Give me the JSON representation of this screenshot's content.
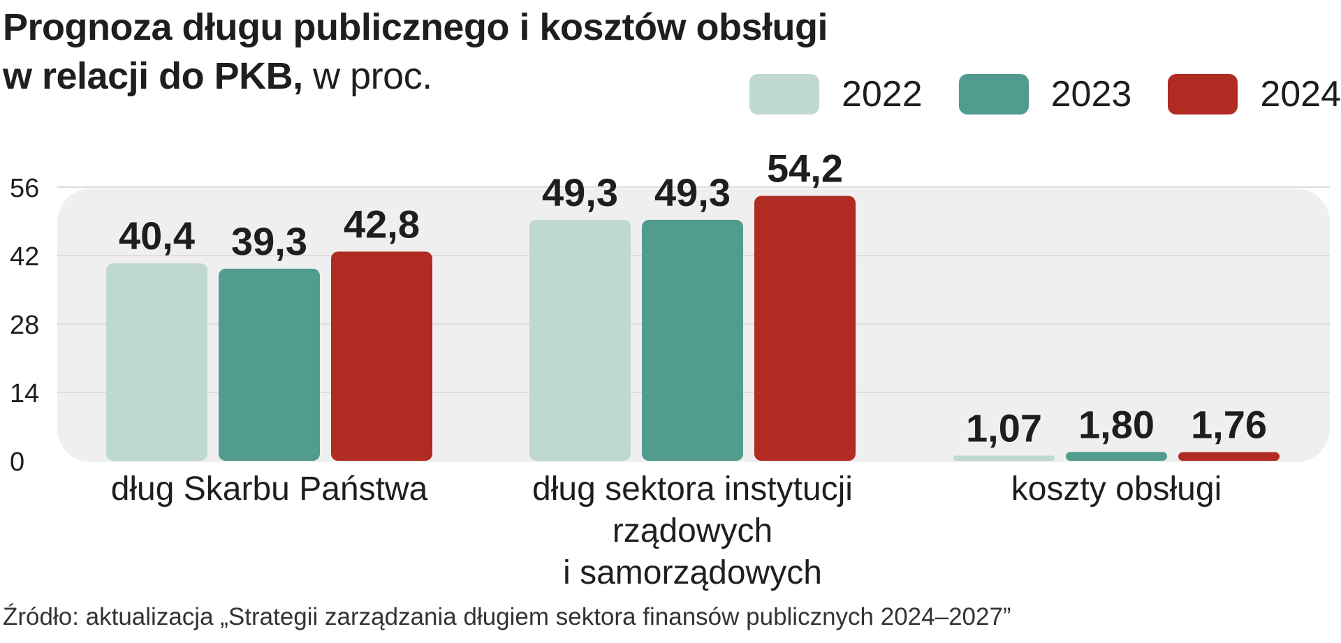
{
  "chart_data": {
    "type": "bar",
    "title": "Prognoza długu publicznego i kosztów obsługi w relacji do PKB,",
    "title_line1": "Prognoza długu publicznego i kosztów obsługi",
    "title_line2": "w relacji do PKB,",
    "unit": "w proc.",
    "categories": [
      [
        "dług Skarbu Państwa"
      ],
      [
        "dług sektora instytucji",
        "rządowych",
        "i samorządowych"
      ],
      [
        "koszty obsługi"
      ]
    ],
    "series": [
      {
        "name": "2022",
        "color": "#bfd9d2",
        "values": [
          40.4,
          49.3,
          1.07
        ],
        "labels": [
          "40,4",
          "49,3",
          "1,07"
        ]
      },
      {
        "name": "2023",
        "color": "#519b8f",
        "values": [
          39.3,
          49.3,
          1.8
        ],
        "labels": [
          "39,3",
          "49,3",
          "1,80"
        ]
      },
      {
        "name": "2024",
        "color": "#b02b22",
        "values": [
          42.8,
          54.2,
          1.76
        ],
        "labels": [
          "42,8",
          "54,2",
          "1,76"
        ]
      }
    ],
    "yticks": [
      "0",
      "14",
      "28",
      "42",
      "56"
    ],
    "ylim": [
      0,
      56
    ],
    "grid": true,
    "legend": "top-right",
    "source": "Źródło: aktualizacja „Strategii zarządzania długiem sektora finansów publicznych 2024–2027”"
  }
}
